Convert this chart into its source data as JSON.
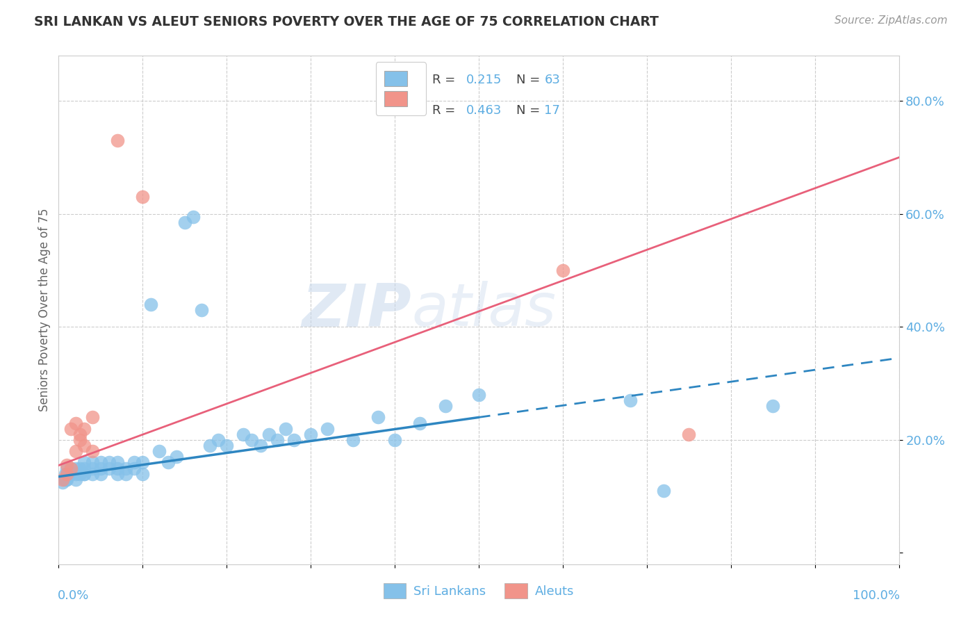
{
  "title": "SRI LANKAN VS ALEUT SENIORS POVERTY OVER THE AGE OF 75 CORRELATION CHART",
  "source": "Source: ZipAtlas.com",
  "ylabel": "Seniors Poverty Over the Age of 75",
  "legend_group1": "Sri Lankans",
  "legend_group2": "Aleuts",
  "color_blue": "#85C1E9",
  "color_pink": "#F1948A",
  "color_trend_blue": "#2E86C1",
  "color_trend_pink": "#E8607A",
  "color_axis_text": "#5DADE2",
  "watermark_zip": "ZIP",
  "watermark_atlas": "atlas",
  "R1": 0.215,
  "N1": 63,
  "R2": 0.463,
  "N2": 17,
  "xlim": [
    0.0,
    1.0
  ],
  "ylim": [
    -0.02,
    0.88
  ],
  "sri_x": [
    0.005,
    0.007,
    0.008,
    0.009,
    0.01,
    0.01,
    0.01,
    0.015,
    0.015,
    0.02,
    0.02,
    0.02,
    0.025,
    0.025,
    0.03,
    0.03,
    0.03,
    0.03,
    0.04,
    0.04,
    0.04,
    0.05,
    0.05,
    0.05,
    0.06,
    0.06,
    0.07,
    0.07,
    0.07,
    0.08,
    0.08,
    0.09,
    0.09,
    0.1,
    0.1,
    0.11,
    0.12,
    0.13,
    0.14,
    0.15,
    0.16,
    0.17,
    0.18,
    0.19,
    0.2,
    0.22,
    0.23,
    0.24,
    0.25,
    0.26,
    0.27,
    0.28,
    0.3,
    0.32,
    0.35,
    0.38,
    0.4,
    0.43,
    0.46,
    0.5,
    0.68,
    0.72,
    0.85
  ],
  "sri_y": [
    0.125,
    0.13,
    0.14,
    0.13,
    0.14,
    0.15,
    0.13,
    0.14,
    0.15,
    0.14,
    0.15,
    0.13,
    0.14,
    0.15,
    0.14,
    0.15,
    0.16,
    0.14,
    0.14,
    0.15,
    0.16,
    0.15,
    0.16,
    0.14,
    0.15,
    0.16,
    0.14,
    0.15,
    0.16,
    0.15,
    0.14,
    0.15,
    0.16,
    0.14,
    0.16,
    0.44,
    0.18,
    0.16,
    0.17,
    0.585,
    0.595,
    0.43,
    0.19,
    0.2,
    0.19,
    0.21,
    0.2,
    0.19,
    0.21,
    0.2,
    0.22,
    0.2,
    0.21,
    0.22,
    0.2,
    0.24,
    0.2,
    0.23,
    0.26,
    0.28,
    0.27,
    0.11,
    0.26
  ],
  "aleut_x": [
    0.005,
    0.01,
    0.01,
    0.015,
    0.015,
    0.02,
    0.02,
    0.025,
    0.025,
    0.03,
    0.03,
    0.04,
    0.04,
    0.07,
    0.1,
    0.6,
    0.75
  ],
  "aleut_y": [
    0.13,
    0.14,
    0.155,
    0.15,
    0.22,
    0.23,
    0.18,
    0.2,
    0.21,
    0.19,
    0.22,
    0.18,
    0.24,
    0.73,
    0.63,
    0.5,
    0.21
  ],
  "blue_trend_x0": 0.0,
  "blue_trend_y0": 0.135,
  "blue_trend_x_solid_end": 0.5,
  "blue_trend_x1": 1.0,
  "blue_trend_y1": 0.345,
  "pink_trend_x0": 0.0,
  "pink_trend_y0": 0.155,
  "pink_trend_x1": 1.0,
  "pink_trend_y1": 0.7
}
